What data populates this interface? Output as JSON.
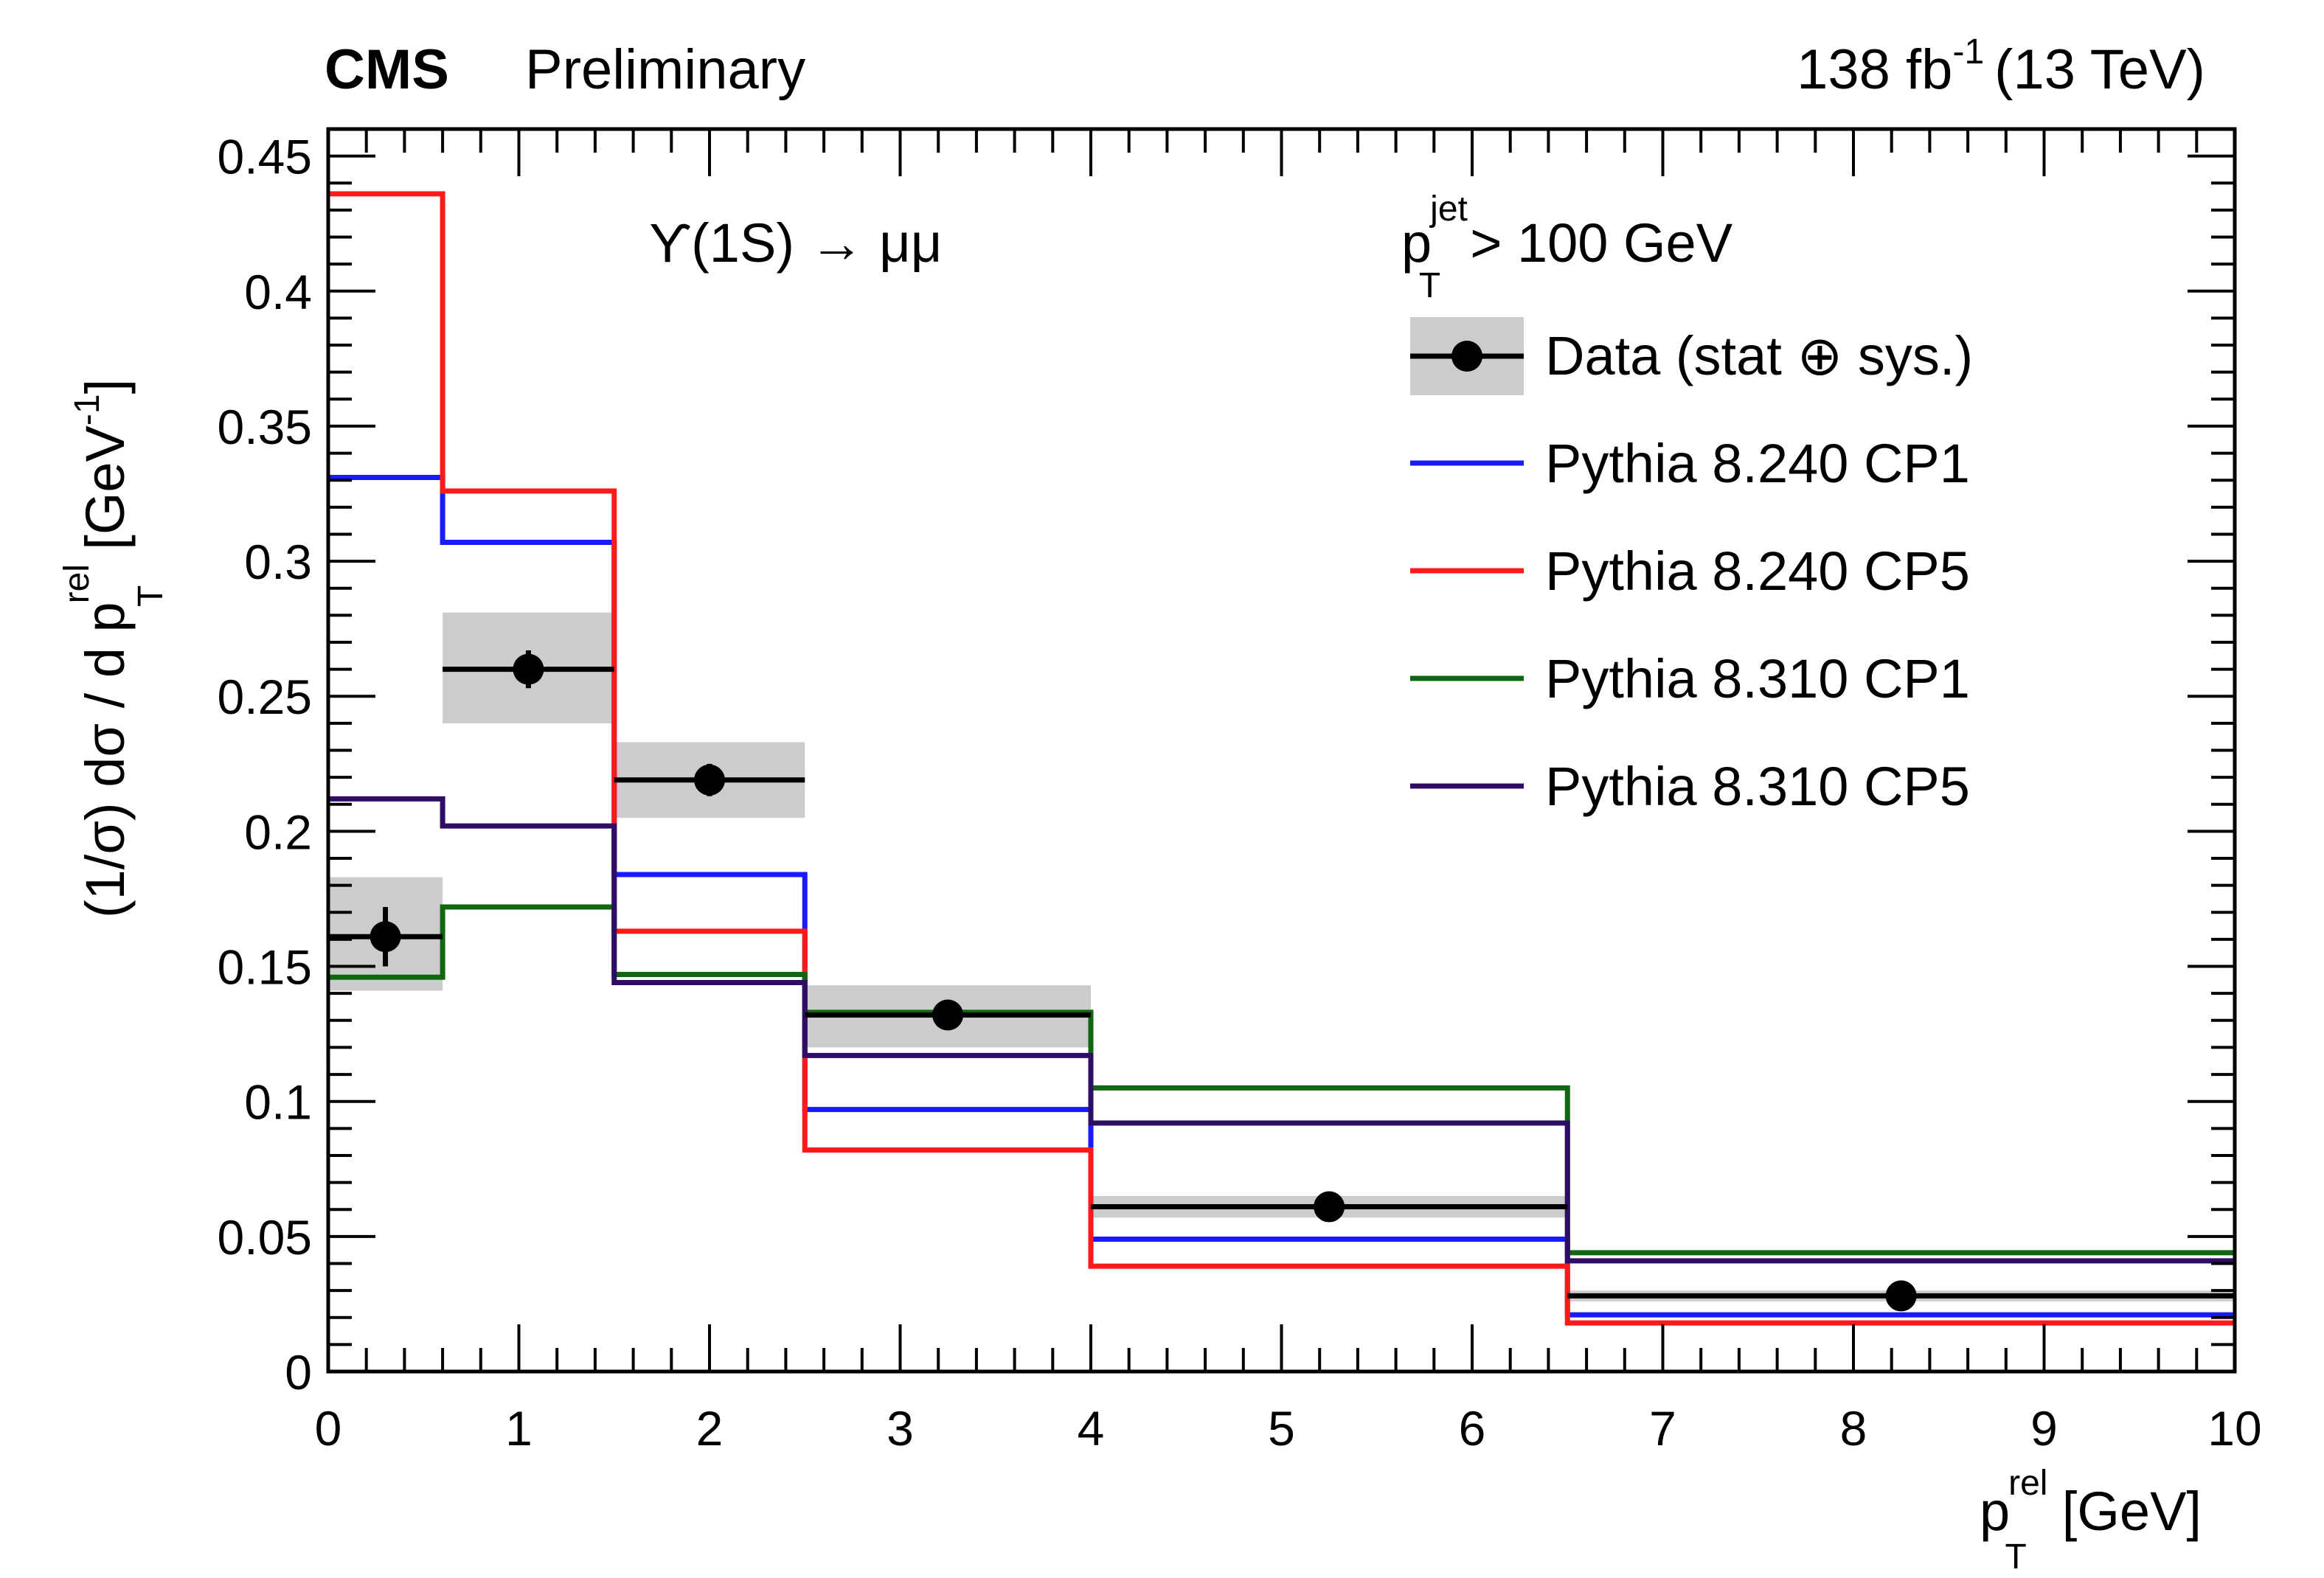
{
  "chart_data": {
    "type": "line",
    "title": "",
    "header": {
      "experiment": "CMS",
      "status": "Preliminary",
      "lumi_value": "138 fb",
      "lumi_exponent": "-1",
      "energy": "(13 TeV)"
    },
    "xlabel": {
      "main": "p",
      "sup": "rel",
      "sub": "T",
      "unit": "[GeV]"
    },
    "ylabel": {
      "prefix": "(1/σ) dσ / d p",
      "sup": "rel",
      "sub": "T",
      "unit_open": "[GeV",
      "unit_exp": "-1",
      "unit_close": "]"
    },
    "xlim": [
      0,
      10
    ],
    "ylim": [
      0,
      0.46
    ],
    "x_ticks": [
      "0",
      "1",
      "2",
      "3",
      "4",
      "5",
      "6",
      "7",
      "8",
      "9",
      "10"
    ],
    "y_ticks": [
      "0",
      "0.05",
      "0.1",
      "0.15",
      "0.2",
      "0.25",
      "0.3",
      "0.35",
      "0.4",
      "0.45"
    ],
    "bin_edges": [
      0,
      0.6,
      1.5,
      2.5,
      4.0,
      6.5,
      10
    ],
    "process_label": "ϒ(1S) → μμ",
    "cut_label": {
      "main": "p",
      "sup": "jet",
      "sub": "T",
      "rest": "> 100 GeV"
    },
    "data": {
      "name": "Data (stat ⊕ sys.)",
      "x": [
        0.3,
        1.05,
        2.0,
        3.25,
        5.25,
        8.25
      ],
      "y": [
        0.161,
        0.26,
        0.219,
        0.132,
        0.061,
        0.028
      ],
      "stat_err": [
        0.011,
        0.007,
        0.006,
        0.004,
        0.002,
        0.001
      ],
      "sys_low": [
        0.02,
        0.02,
        0.014,
        0.012,
        0.004,
        0.002
      ],
      "sys_high": [
        0.022,
        0.021,
        0.014,
        0.011,
        0.004,
        0.002
      ],
      "marker_color": "#000000",
      "band_color": "#cccccc"
    },
    "series": [
      {
        "name": "Pythia 8.240 CP1",
        "color": "#1a1aff",
        "values": [
          0.331,
          0.307,
          0.184,
          0.097,
          0.049,
          0.021
        ]
      },
      {
        "name": "Pythia 8.240 CP5",
        "color": "#ff1a1a",
        "values": [
          0.436,
          0.326,
          0.163,
          0.082,
          0.039,
          0.018
        ]
      },
      {
        "name": "Pythia 8.310 CP1",
        "color": "#116611",
        "values": [
          0.146,
          0.172,
          0.147,
          0.133,
          0.105,
          0.044
        ]
      },
      {
        "name": "Pythia 8.310 CP5",
        "color": "#2e0d66",
        "values": [
          0.212,
          0.202,
          0.144,
          0.117,
          0.092,
          0.041
        ]
      }
    ],
    "legend_position": "top-right",
    "frame_color": "#000000"
  }
}
